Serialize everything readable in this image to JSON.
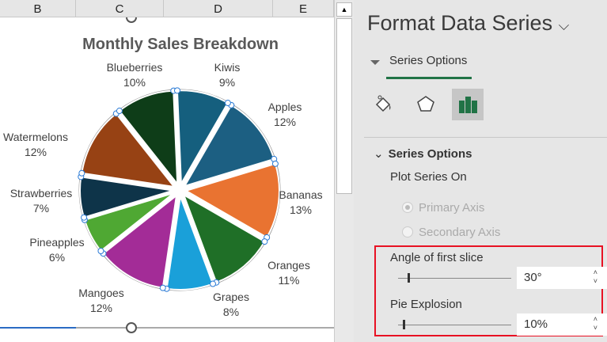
{
  "columns": [
    "B",
    "C",
    "D",
    "E"
  ],
  "chart_data": {
    "type": "pie",
    "title": "Monthly Sales Breakdown",
    "first_slice_angle_deg": 30,
    "explosion_pct": 10,
    "categories": [
      "Apples",
      "Bananas",
      "Oranges",
      "Grapes",
      "Mangoes",
      "Pineapples",
      "Strawberries",
      "Watermelons",
      "Blueberries",
      "Kiwis"
    ],
    "values": [
      12,
      13,
      11,
      8,
      12,
      6,
      7,
      12,
      10,
      9
    ],
    "labels": [
      "12%",
      "13%",
      "11%",
      "8%",
      "12%",
      "6%",
      "7%",
      "12%",
      "10%",
      "9%"
    ],
    "colors": [
      "#1c5f82",
      "#e97331",
      "#1f6f27",
      "#1aa0d9",
      "#a32c97",
      "#4fa833",
      "#0e3449",
      "#974214",
      "#0e3d18",
      "#155f7e"
    ]
  },
  "pane": {
    "title": "Format Data Series",
    "tab": "Series Options",
    "icons": [
      "fill-line-icon",
      "effects-icon",
      "series-options-icon"
    ],
    "section": "Series Options",
    "plot_series_on": "Plot Series On",
    "primary_axis": "Primary Axis",
    "secondary_axis": "Secondary Axis",
    "angle_label": "Angle of first slice",
    "angle_value": "30°",
    "explosion_label": "Pie Explosion",
    "explosion_value": "10%",
    "accent": "#217346",
    "highlight": "#e81123"
  }
}
